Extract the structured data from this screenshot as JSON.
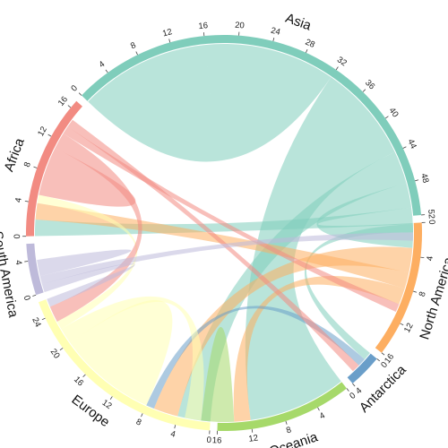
{
  "chart_data": {
    "type": "chord",
    "regions": [
      {
        "name": "Asia",
        "label": "Asia",
        "total": 52,
        "color": "#7fcdbb",
        "ticks": [
          0,
          4,
          8,
          12,
          16,
          20,
          24,
          28,
          32,
          36,
          40,
          44,
          48,
          52
        ]
      },
      {
        "name": "North America",
        "label": "North America",
        "total": 16,
        "color": "#fdae61",
        "ticks": [
          0,
          4,
          8,
          12,
          16
        ]
      },
      {
        "name": "Antarctica",
        "label": "Antarctica",
        "total": 4,
        "color": "#6a9ec9",
        "ticks": [
          0,
          4
        ]
      },
      {
        "name": "Oceania",
        "label": "Oceania",
        "total": 16,
        "color": "#a6d96a",
        "ticks": [
          0,
          4,
          8,
          12,
          16
        ]
      },
      {
        "name": "Europe",
        "label": "Europe",
        "total": 26,
        "color": "#ffffb3",
        "ticks": [
          0,
          4,
          8,
          12,
          16,
          20,
          24
        ]
      },
      {
        "name": "South America",
        "label": "South America",
        "total": 6,
        "color": "#bebada",
        "ticks": [
          0,
          4
        ]
      },
      {
        "name": "Africa",
        "label": "Africa",
        "total": 17,
        "color": "#f28b82",
        "ticks": [
          0,
          4,
          8,
          12,
          16
        ]
      }
    ],
    "flows": [
      {
        "source": "Asia",
        "target": "Asia",
        "value": 16
      },
      {
        "source": "Asia",
        "target": "Oceania",
        "value": 12
      },
      {
        "source": "Asia",
        "target": "Europe",
        "value": 4
      },
      {
        "source": "Asia",
        "target": "North America",
        "value": 3
      },
      {
        "source": "Asia",
        "target": "Africa",
        "value": 2
      },
      {
        "source": "Asia",
        "target": "Antarctica",
        "value": 1
      },
      {
        "source": "North America",
        "target": "Europe",
        "value": 3
      },
      {
        "source": "North America",
        "target": "Africa",
        "value": 2
      },
      {
        "source": "North America",
        "target": "Oceania",
        "value": 2
      },
      {
        "source": "Antarctica",
        "target": "Europe",
        "value": 1
      },
      {
        "source": "Oceania",
        "target": "Oceania",
        "value": 2
      },
      {
        "source": "Europe",
        "target": "Europe",
        "value": 6
      },
      {
        "source": "Europe",
        "target": "Oceania",
        "value": 2
      },
      {
        "source": "Europe",
        "target": "Africa",
        "value": 1
      },
      {
        "source": "Africa",
        "target": "Africa",
        "value": 3
      },
      {
        "source": "Africa",
        "target": "Europe",
        "value": 2
      },
      {
        "source": "Africa",
        "target": "North America",
        "value": 1
      },
      {
        "source": "Africa",
        "target": "Antarctica",
        "value": 1
      },
      {
        "source": "South America",
        "target": "Europe",
        "value": 1
      },
      {
        "source": "South America",
        "target": "Asia",
        "value": 1
      },
      {
        "source": "South America",
        "target": "South America",
        "value": 1
      }
    ]
  }
}
